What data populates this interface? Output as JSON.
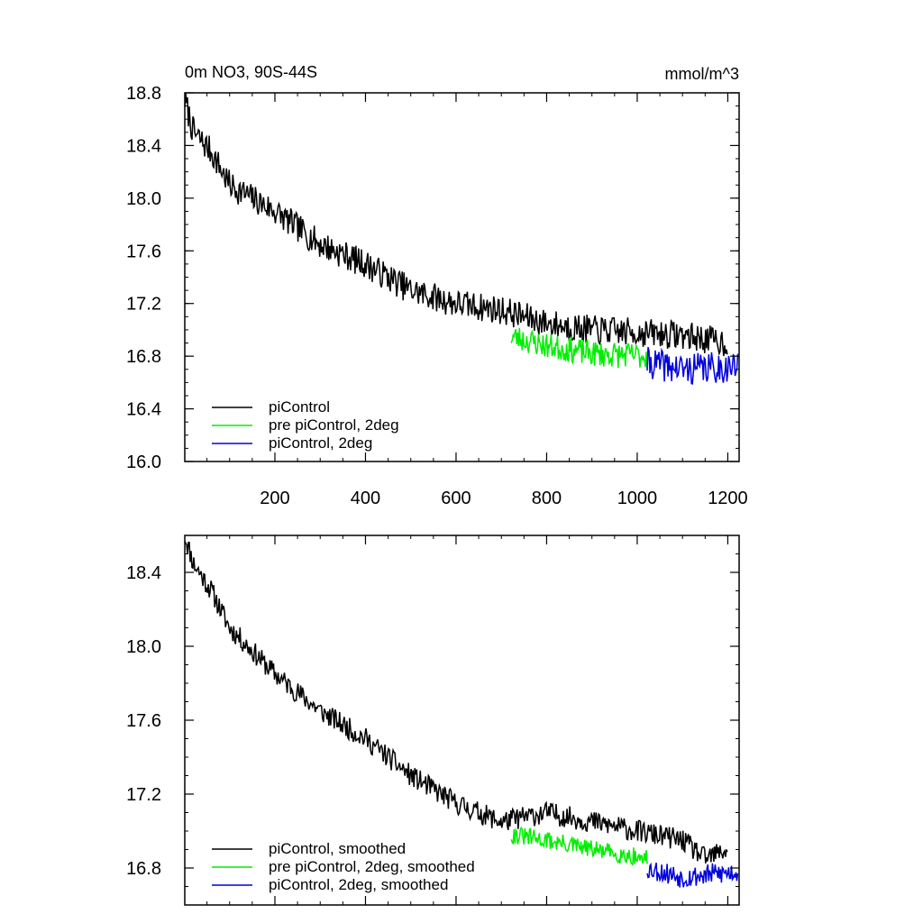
{
  "chart_data": [
    {
      "type": "line",
      "title": "0m NO3, 90S-44S",
      "units": "mmol/m^3",
      "xlim": [
        1,
        1225
      ],
      "ylim": [
        16.0,
        18.8
      ],
      "yticks": [
        16.0,
        16.4,
        16.8,
        17.2,
        17.6,
        18.0,
        18.4,
        18.8
      ],
      "ytick_labels": [
        "16.0",
        "16.4",
        "16.8",
        "17.2",
        "17.6",
        "18.0",
        "18.4",
        "18.8"
      ],
      "xticks": [
        200,
        400,
        600,
        800,
        1000,
        1200
      ],
      "xtick_labels": [
        "200",
        "400",
        "600",
        "800",
        "1000",
        "1200"
      ],
      "legend_position": "bottom-left",
      "series": [
        {
          "name": "piControl",
          "color": "#000000",
          "x_start": 1,
          "x_end": 1200,
          "anchors": [
            [
              1,
              18.75
            ],
            [
              20,
              18.5
            ],
            [
              60,
              18.35
            ],
            [
              100,
              18.1
            ],
            [
              200,
              17.9
            ],
            [
              300,
              17.65
            ],
            [
              400,
              17.5
            ],
            [
              500,
              17.3
            ],
            [
              600,
              17.2
            ],
            [
              700,
              17.15
            ],
            [
              800,
              17.05
            ],
            [
              900,
              17.0
            ],
            [
              1000,
              16.98
            ],
            [
              1100,
              16.96
            ],
            [
              1200,
              16.9
            ]
          ],
          "noise": 0.11,
          "seed": 7
        },
        {
          "name": "pre piControl, 2deg",
          "color": "#00ee00",
          "x_start": 722,
          "x_end": 1022,
          "anchors": [
            [
              722,
              16.95
            ],
            [
              800,
              16.88
            ],
            [
              900,
              16.82
            ],
            [
              1022,
              16.8
            ]
          ],
          "noise": 0.1,
          "seed": 23
        },
        {
          "name": "piControl, 2deg",
          "color": "#0000dd",
          "x_start": 1022,
          "x_end": 1222,
          "anchors": [
            [
              1022,
              16.75
            ],
            [
              1100,
              16.7
            ],
            [
              1222,
              16.72
            ]
          ],
          "noise": 0.12,
          "seed": 41
        }
      ]
    },
    {
      "type": "line",
      "title": "",
      "xlim": [
        1,
        1225
      ],
      "ylim": [
        16.6,
        18.6
      ],
      "yticks": [
        16.8,
        17.2,
        17.6,
        18.0,
        18.4
      ],
      "ytick_labels": [
        "16.8",
        "17.2",
        "17.6",
        "18.0",
        "18.4"
      ],
      "xticks": [
        200,
        400,
        600,
        800,
        1000,
        1200
      ],
      "xtick_labels": [],
      "legend_position": "bottom-left",
      "series": [
        {
          "name": "piControl, smoothed",
          "color": "#000000",
          "x_start": 1,
          "x_end": 1200,
          "anchors": [
            [
              1,
              18.6
            ],
            [
              20,
              18.45
            ],
            [
              60,
              18.3
            ],
            [
              100,
              18.1
            ],
            [
              200,
              17.85
            ],
            [
              300,
              17.65
            ],
            [
              400,
              17.5
            ],
            [
              500,
              17.3
            ],
            [
              600,
              17.15
            ],
            [
              700,
              17.05
            ],
            [
              800,
              17.1
            ],
            [
              900,
              17.05
            ],
            [
              1000,
              17.0
            ],
            [
              1100,
              16.95
            ],
            [
              1150,
              16.85
            ],
            [
              1200,
              16.9
            ]
          ],
          "noise": 0.06,
          "seed": 11
        },
        {
          "name": "pre piControl, 2deg, smoothed",
          "color": "#00ee00",
          "x_start": 722,
          "x_end": 1022,
          "anchors": [
            [
              722,
              16.98
            ],
            [
              800,
              16.95
            ],
            [
              900,
              16.9
            ],
            [
              1022,
              16.85
            ]
          ],
          "noise": 0.05,
          "seed": 31
        },
        {
          "name": "piControl, 2deg, smoothed",
          "color": "#0000dd",
          "x_start": 1022,
          "x_end": 1222,
          "anchors": [
            [
              1022,
              16.8
            ],
            [
              1100,
              16.75
            ],
            [
              1222,
              16.78
            ]
          ],
          "noise": 0.06,
          "seed": 53
        }
      ]
    }
  ]
}
